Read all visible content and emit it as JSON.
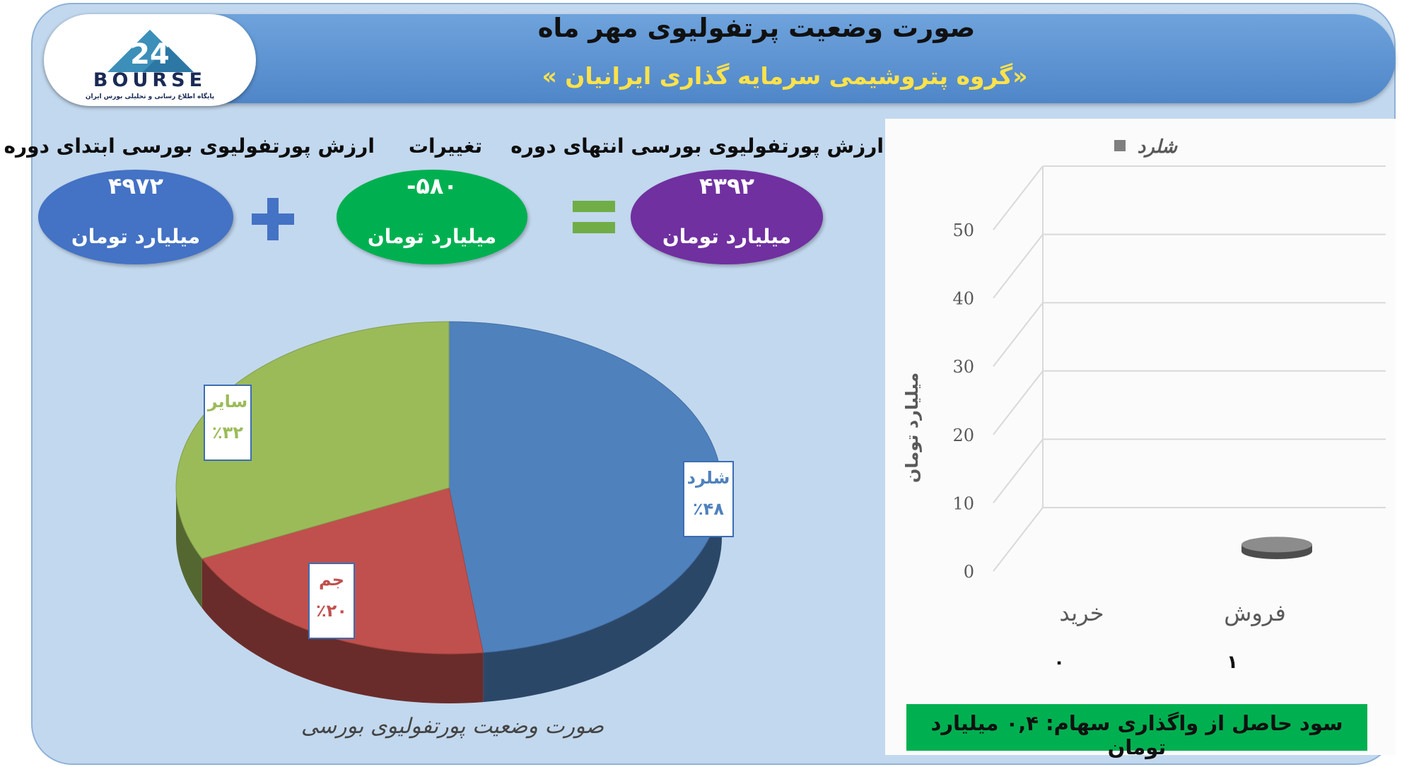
{
  "header": {
    "title": "صورت وضعیت پرتفولیوی مهر ماه",
    "subtitle": "«گروه پتروشیمی سرمایه گذاری ایرانیان »"
  },
  "logo": {
    "word": "BOURSE",
    "tagline": "پایگاه اطلاع رسانی و تحلیلی بورس ایران"
  },
  "metrics": {
    "start": {
      "label": "ارزش پورتفولیوی بورسی ابتدای دوره",
      "value": "۴۹۷۲",
      "unit": "میلیارد تومان",
      "color": "#4472c4"
    },
    "change": {
      "label": "تغییرات",
      "value": "-۵۸۰",
      "unit": "میلیارد تومان",
      "color": "#00b050"
    },
    "end": {
      "label": "ارزش پورتفولیوی بورسی انتهای دوره",
      "value": "۴۳۹۲",
      "unit": "میلیارد تومان",
      "color": "#7030a0"
    },
    "plus_color": "#4472c4",
    "equals_color": "#70ad47"
  },
  "pie_caption": "صورت وضعیت پورتفولیوی بورسی",
  "profit_note": "سود حاصل از واگذاری سهام: ۰,۴ میلیارد تومان",
  "chart_data": [
    {
      "type": "pie",
      "title": "صورت وضعیت پورتفولیوی بورسی",
      "slices": [
        {
          "name": "شلرد",
          "value": 48,
          "label": "٪۴۸",
          "color": "#4f81bd",
          "label_color": "#4f81bd"
        },
        {
          "name": "جم",
          "value": 20,
          "label": "٪۲۰",
          "color": "#c0504d",
          "label_color": "#c0504d"
        },
        {
          "name": "سایر",
          "value": 32,
          "label": "٪۳۲",
          "color": "#9bbb59",
          "label_color": "#9bbb59"
        }
      ]
    },
    {
      "type": "bar",
      "categories": [
        "خرید",
        "فروش"
      ],
      "series": [
        {
          "name": "شلرد",
          "values": [
            0,
            1
          ],
          "color": "#7f7f7f"
        }
      ],
      "value_labels": [
        "۰",
        "۱"
      ],
      "ylabel": "میلیارد تومان",
      "ylim": [
        0,
        50
      ],
      "yticks": [
        "0",
        "10",
        "20",
        "30",
        "40",
        "50"
      ],
      "grid": true,
      "legend_position": "top"
    }
  ]
}
